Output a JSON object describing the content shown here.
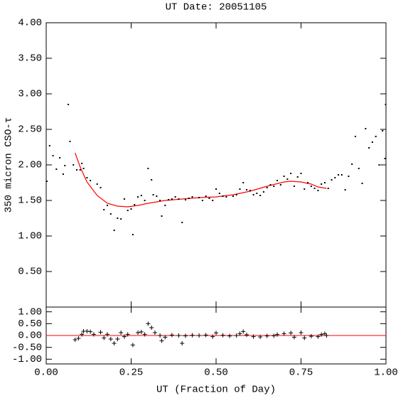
{
  "chart_data": [
    {
      "type": "scatter",
      "title": "UT Date: 20051105",
      "y_label": "350 micron CSO-τ",
      "color": "#000000",
      "x": [
        0.002,
        0.01,
        0.02,
        0.03,
        0.04,
        0.05,
        0.055,
        0.065,
        0.07,
        0.08,
        0.09,
        0.1,
        0.105,
        0.11,
        0.12,
        0.13,
        0.15,
        0.16,
        0.17,
        0.18,
        0.19,
        0.2,
        0.21,
        0.22,
        0.23,
        0.24,
        0.25,
        0.255,
        0.26,
        0.27,
        0.28,
        0.29,
        0.3,
        0.31,
        0.315,
        0.325,
        0.335,
        0.34,
        0.35,
        0.36,
        0.37,
        0.38,
        0.39,
        0.4,
        0.41,
        0.42,
        0.43,
        0.45,
        0.46,
        0.47,
        0.48,
        0.49,
        0.5,
        0.51,
        0.52,
        0.53,
        0.55,
        0.56,
        0.57,
        0.58,
        0.59,
        0.6,
        0.61,
        0.62,
        0.63,
        0.64,
        0.65,
        0.66,
        0.67,
        0.68,
        0.69,
        0.7,
        0.71,
        0.72,
        0.73,
        0.74,
        0.75,
        0.76,
        0.77,
        0.78,
        0.79,
        0.8,
        0.81,
        0.82,
        0.83,
        0.84,
        0.85,
        0.86,
        0.87,
        0.88,
        0.89,
        0.9,
        0.91,
        0.92,
        0.93,
        0.94,
        0.95,
        0.96,
        0.97,
        0.98,
        0.99,
        0.997,
        0.999
      ],
      "values": [
        1.77,
        2.27,
        2.13,
        1.94,
        2.1,
        1.87,
        1.99,
        2.85,
        2.33,
        2.0,
        1.93,
        1.93,
        2.02,
        1.95,
        1.82,
        1.78,
        1.73,
        1.68,
        1.37,
        1.43,
        1.31,
        1.08,
        1.25,
        1.24,
        1.52,
        1.36,
        1.38,
        1.02,
        1.44,
        1.55,
        1.57,
        1.5,
        1.95,
        1.79,
        1.58,
        1.56,
        1.5,
        1.28,
        1.43,
        1.51,
        1.52,
        1.55,
        1.52,
        1.19,
        1.51,
        1.53,
        1.55,
        1.54,
        1.5,
        1.56,
        1.53,
        1.5,
        1.66,
        1.6,
        1.56,
        1.55,
        1.56,
        1.58,
        1.66,
        1.75,
        1.65,
        1.64,
        1.58,
        1.6,
        1.57,
        1.62,
        1.68,
        1.72,
        1.7,
        1.78,
        1.72,
        1.84,
        1.8,
        1.88,
        1.7,
        1.83,
        1.88,
        1.66,
        1.75,
        1.7,
        1.67,
        1.64,
        1.73,
        1.75,
        1.67,
        1.79,
        1.82,
        1.86,
        1.86,
        1.65,
        1.84,
        2.01,
        2.4,
        1.95,
        1.74,
        2.51,
        2.24,
        2.32,
        2.4,
        2.0,
        2.48,
        2.09,
        2.85
      ],
      "fit": {
        "color": "#ff0000",
        "x": [
          0.085,
          0.1,
          0.12,
          0.15,
          0.18,
          0.21,
          0.24,
          0.27,
          0.3,
          0.35,
          0.4,
          0.45,
          0.5,
          0.55,
          0.6,
          0.65,
          0.7,
          0.72,
          0.75,
          0.78,
          0.8,
          0.825
        ],
        "values": [
          2.17,
          1.97,
          1.76,
          1.57,
          1.46,
          1.42,
          1.41,
          1.43,
          1.46,
          1.5,
          1.52,
          1.54,
          1.55,
          1.58,
          1.63,
          1.7,
          1.76,
          1.77,
          1.76,
          1.73,
          1.69,
          1.67
        ]
      },
      "xlim": [
        0,
        1
      ],
      "ylim": [
        0,
        4
      ],
      "yticks": [
        {
          "value": 0.5,
          "label": "0.50"
        },
        {
          "value": 1,
          "label": "1.00"
        },
        {
          "value": 1.5,
          "label": "1.50"
        },
        {
          "value": 2,
          "label": "2.00"
        },
        {
          "value": 2.5,
          "label": "2.50"
        },
        {
          "value": 3,
          "label": "3.00"
        },
        {
          "value": 3.5,
          "label": "3.50"
        },
        {
          "value": 4,
          "label": "4.00"
        }
      ]
    },
    {
      "type": "cross",
      "x_label": "UT (Fraction of Day)",
      "color": "#000000",
      "reference": 0,
      "reference_color": "#ff0000",
      "x": [
        0.085,
        0.095,
        0.105,
        0.11,
        0.12,
        0.13,
        0.14,
        0.16,
        0.17,
        0.18,
        0.19,
        0.2,
        0.21,
        0.22,
        0.23,
        0.24,
        0.255,
        0.27,
        0.28,
        0.29,
        0.3,
        0.31,
        0.32,
        0.335,
        0.34,
        0.35,
        0.37,
        0.39,
        0.4,
        0.41,
        0.43,
        0.45,
        0.47,
        0.49,
        0.5,
        0.52,
        0.54,
        0.56,
        0.57,
        0.58,
        0.59,
        0.61,
        0.63,
        0.65,
        0.67,
        0.68,
        0.7,
        0.72,
        0.73,
        0.75,
        0.76,
        0.78,
        0.8,
        0.81,
        0.82,
        0.825
      ],
      "values": [
        -0.18,
        -0.12,
        0.05,
        0.18,
        0.18,
        0.16,
        0.05,
        0.14,
        -0.1,
        0.05,
        -0.15,
        -0.33,
        -0.15,
        0.12,
        -0.05,
        0.05,
        -0.4,
        0.12,
        0.15,
        0.05,
        0.5,
        0.33,
        0.12,
        0.0,
        -0.22,
        -0.07,
        0.02,
        0.0,
        -0.33,
        -0.01,
        0.01,
        0.0,
        0.02,
        -0.05,
        0.11,
        0.01,
        -0.02,
        0.0,
        0.08,
        0.17,
        0.03,
        -0.05,
        -0.06,
        -0.02,
        -0.01,
        0.04,
        0.08,
        0.11,
        -0.07,
        0.12,
        -0.1,
        -0.03,
        -0.05,
        0.04,
        0.08,
        0.0
      ],
      "xlim": [
        0,
        1
      ],
      "ylim": [
        -1.2,
        1.2
      ],
      "xticks": [
        {
          "value": 0,
          "label": "0.00"
        },
        {
          "value": 0.25,
          "label": "0.25"
        },
        {
          "value": 0.5,
          "label": "0.50"
        },
        {
          "value": 0.75,
          "label": "0.75"
        },
        {
          "value": 1,
          "label": "1.00"
        }
      ],
      "yticks": [
        {
          "value": -1,
          "label": "-1.00"
        },
        {
          "value": -0.5,
          "label": "-0.50"
        },
        {
          "value": 0,
          "label": "0.00"
        },
        {
          "value": 0.5,
          "label": "0.50"
        },
        {
          "value": 1,
          "label": "1.00"
        }
      ]
    }
  ]
}
